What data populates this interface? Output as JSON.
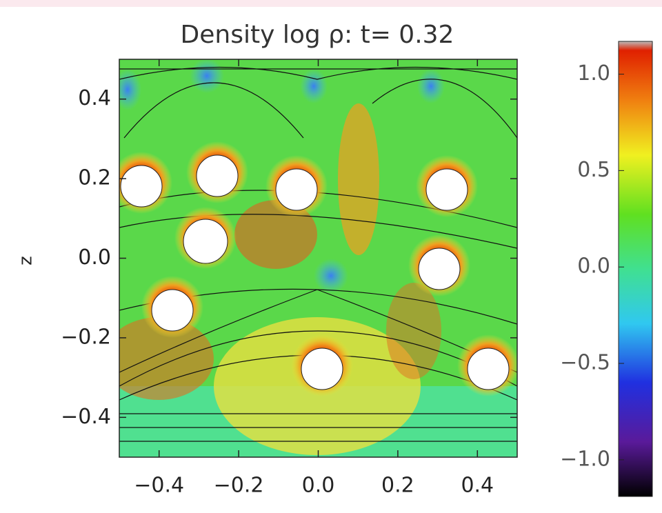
{
  "chart_data": {
    "type": "heatmap",
    "title": "Density log ρ: t= 0.32",
    "ylabel": "z",
    "xlim": [
      -0.5,
      0.5
    ],
    "ylim": [
      -0.5,
      0.5
    ],
    "xticks": [
      {
        "value": -0.4,
        "label": "−0.4"
      },
      {
        "value": -0.2,
        "label": "−0.2"
      },
      {
        "value": 0,
        "label": "0.0"
      },
      0.2,
      0.4
    ],
    "yticks": [
      {
        "value": -0.4,
        "label": "−0.4"
      },
      {
        "value": -0.2,
        "label": "−0.2"
      },
      {
        "value": 0,
        "label": "0.0"
      },
      0.2,
      0.4
    ],
    "colorbar": {
      "clim": [
        -1.19,
        1.17
      ],
      "ticks": [
        {
          "value": -1,
          "label": "−1.0"
        },
        {
          "value": -0.5,
          "label": "−0.5"
        },
        {
          "value": 0,
          "label": "0.0"
        },
        0.5,
        {
          "value": 1,
          "label": "1.0"
        }
      ]
    }
  }
}
